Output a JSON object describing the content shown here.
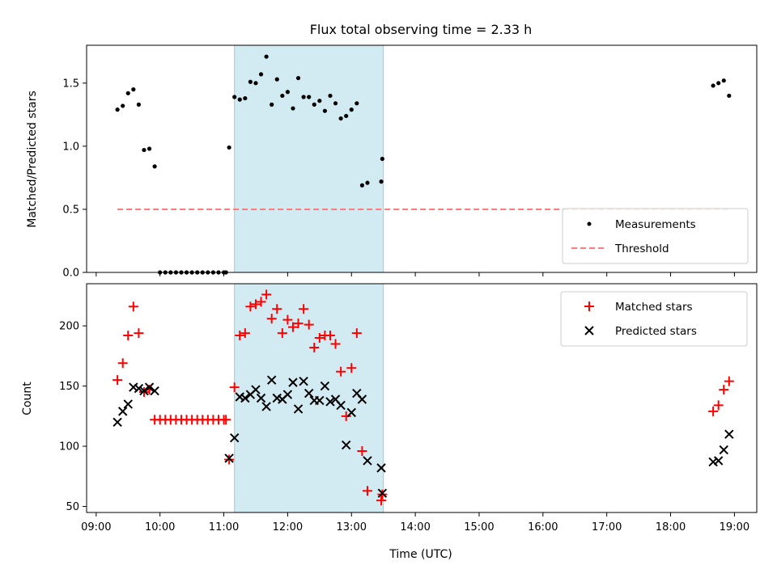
{
  "chart_data": {
    "type": "scatter",
    "title": "Flux total observing time = 2.33 h",
    "xlabel": "Time (UTC)",
    "xlim": [
      "09:00",
      "19:00"
    ],
    "x_ticks": [
      "09:00",
      "10:00",
      "11:00",
      "12:00",
      "13:00",
      "14:00",
      "15:00",
      "16:00",
      "17:00",
      "18:00",
      "19:00"
    ],
    "colors": {
      "measurement": "#000000",
      "threshold": "#ff7a7a",
      "matched": "#ff0000",
      "predicted": "#000000",
      "shade": "#add8e6"
    },
    "observing_window": {
      "start": "11:10",
      "end": "13:30"
    },
    "panels": [
      {
        "ylabel": "Matched/Predicted stars",
        "ylim": [
          0,
          1.8
        ],
        "y_ticks": [
          "0.0",
          "0.5",
          "1.0",
          "1.5"
        ],
        "legend_position": "lower-right",
        "legend": [
          "Measurements",
          "Threshold"
        ],
        "threshold": {
          "value": 0.5,
          "from": "09:20",
          "to": "18:55"
        },
        "series": [
          {
            "name": "Measurements",
            "marker": "dot",
            "points": [
              [
                "09:20",
                1.29
              ],
              [
                "09:25",
                1.32
              ],
              [
                "09:30",
                1.42
              ],
              [
                "09:35",
                1.45
              ],
              [
                "09:40",
                1.33
              ],
              [
                "09:45",
                0.97
              ],
              [
                "09:50",
                0.98
              ],
              [
                "09:55",
                0.84
              ],
              [
                "10:00",
                0
              ],
              [
                "10:05",
                0
              ],
              [
                "10:10",
                0
              ],
              [
                "10:15",
                0
              ],
              [
                "10:20",
                0
              ],
              [
                "10:25",
                0
              ],
              [
                "10:30",
                0
              ],
              [
                "10:35",
                0
              ],
              [
                "10:40",
                0
              ],
              [
                "10:45",
                0
              ],
              [
                "10:50",
                0
              ],
              [
                "10:55",
                0
              ],
              [
                "11:00",
                0
              ],
              [
                "11:02",
                0
              ],
              [
                "11:05",
                0.99
              ],
              [
                "11:10",
                1.39
              ],
              [
                "11:15",
                1.37
              ],
              [
                "11:20",
                1.38
              ],
              [
                "11:25",
                1.51
              ],
              [
                "11:30",
                1.5
              ],
              [
                "11:35",
                1.57
              ],
              [
                "11:40",
                1.71
              ],
              [
                "11:45",
                1.33
              ],
              [
                "11:50",
                1.53
              ],
              [
                "11:55",
                1.4
              ],
              [
                "12:00",
                1.43
              ],
              [
                "12:05",
                1.3
              ],
              [
                "12:10",
                1.54
              ],
              [
                "12:15",
                1.39
              ],
              [
                "12:20",
                1.39
              ],
              [
                "12:25",
                1.33
              ],
              [
                "12:30",
                1.36
              ],
              [
                "12:35",
                1.28
              ],
              [
                "12:40",
                1.4
              ],
              [
                "12:45",
                1.34
              ],
              [
                "12:50",
                1.22
              ],
              [
                "12:55",
                1.24
              ],
              [
                "13:00",
                1.29
              ],
              [
                "13:05",
                1.34
              ],
              [
                "13:10",
                0.69
              ],
              [
                "13:15",
                0.71
              ],
              [
                "13:28",
                0.72
              ],
              [
                "13:29",
                0.9
              ],
              [
                "18:40",
                1.48
              ],
              [
                "18:45",
                1.5
              ],
              [
                "18:50",
                1.52
              ],
              [
                "18:55",
                1.4
              ]
            ]
          }
        ]
      },
      {
        "ylabel": "Count",
        "ylim": [
          45,
          235
        ],
        "y_ticks": [
          "50",
          "100",
          "150",
          "200"
        ],
        "legend_position": "upper-right",
        "legend": [
          "Matched stars",
          "Predicted stars"
        ],
        "series": [
          {
            "name": "Matched stars",
            "marker": "plus",
            "points": [
              [
                "09:20",
                155
              ],
              [
                "09:25",
                169
              ],
              [
                "09:30",
                192
              ],
              [
                "09:35",
                216
              ],
              [
                "09:40",
                194
              ],
              [
                "09:45",
                145
              ],
              [
                "09:50",
                147
              ],
              [
                "09:55",
                122
              ],
              [
                "10:00",
                122
              ],
              [
                "10:05",
                122
              ],
              [
                "10:10",
                122
              ],
              [
                "10:15",
                122
              ],
              [
                "10:20",
                122
              ],
              [
                "10:25",
                122
              ],
              [
                "10:30",
                122
              ],
              [
                "10:35",
                122
              ],
              [
                "10:40",
                122
              ],
              [
                "10:45",
                122
              ],
              [
                "10:50",
                122
              ],
              [
                "10:55",
                122
              ],
              [
                "11:00",
                122
              ],
              [
                "11:02",
                122
              ],
              [
                "11:05",
                89
              ],
              [
                "11:10",
                149
              ],
              [
                "11:15",
                192
              ],
              [
                "11:20",
                194
              ],
              [
                "11:25",
                216
              ],
              [
                "11:30",
                218
              ],
              [
                "11:35",
                220
              ],
              [
                "11:40",
                226
              ],
              [
                "11:45",
                206
              ],
              [
                "11:50",
                214
              ],
              [
                "11:55",
                194
              ],
              [
                "12:00",
                205
              ],
              [
                "12:05",
                199
              ],
              [
                "12:10",
                202
              ],
              [
                "12:15",
                214
              ],
              [
                "12:20",
                201
              ],
              [
                "12:25",
                182
              ],
              [
                "12:30",
                190
              ],
              [
                "12:35",
                192
              ],
              [
                "12:40",
                192
              ],
              [
                "12:45",
                185
              ],
              [
                "12:50",
                162
              ],
              [
                "12:55",
                125
              ],
              [
                "13:00",
                165
              ],
              [
                "13:05",
                194
              ],
              [
                "13:10",
                96
              ],
              [
                "13:15",
                63
              ],
              [
                "13:28",
                55
              ],
              [
                "13:29",
                60
              ],
              [
                "18:40",
                129
              ],
              [
                "18:45",
                134
              ],
              [
                "18:50",
                147
              ],
              [
                "18:55",
                154
              ]
            ]
          },
          {
            "name": "Predicted stars",
            "marker": "x",
            "points": [
              [
                "09:20",
                120
              ],
              [
                "09:25",
                129
              ],
              [
                "09:30",
                135
              ],
              [
                "09:35",
                149
              ],
              [
                "09:40",
                148
              ],
              [
                "09:45",
                146
              ],
              [
                "09:50",
                149
              ],
              [
                "09:55",
                146
              ],
              [
                "11:05",
                90
              ],
              [
                "11:10",
                107
              ],
              [
                "11:15",
                141
              ],
              [
                "11:20",
                140
              ],
              [
                "11:25",
                143
              ],
              [
                "11:30",
                147
              ],
              [
                "11:35",
                140
              ],
              [
                "11:40",
                133
              ],
              [
                "11:45",
                155
              ],
              [
                "11:50",
                140
              ],
              [
                "11:55",
                139
              ],
              [
                "12:00",
                143
              ],
              [
                "12:05",
                153
              ],
              [
                "12:10",
                131
              ],
              [
                "12:15",
                154
              ],
              [
                "12:20",
                144
              ],
              [
                "12:25",
                138
              ],
              [
                "12:30",
                138
              ],
              [
                "12:35",
                150
              ],
              [
                "12:40",
                137
              ],
              [
                "12:45",
                139
              ],
              [
                "12:50",
                134
              ],
              [
                "12:55",
                101
              ],
              [
                "13:00",
                128
              ],
              [
                "13:05",
                144
              ],
              [
                "13:10",
                139
              ],
              [
                "13:15",
                88
              ],
              [
                "13:28",
                82
              ],
              [
                "13:29",
                61
              ],
              [
                "18:40",
                87
              ],
              [
                "18:45",
                88
              ],
              [
                "18:50",
                97
              ],
              [
                "18:55",
                110
              ]
            ]
          }
        ]
      }
    ]
  }
}
